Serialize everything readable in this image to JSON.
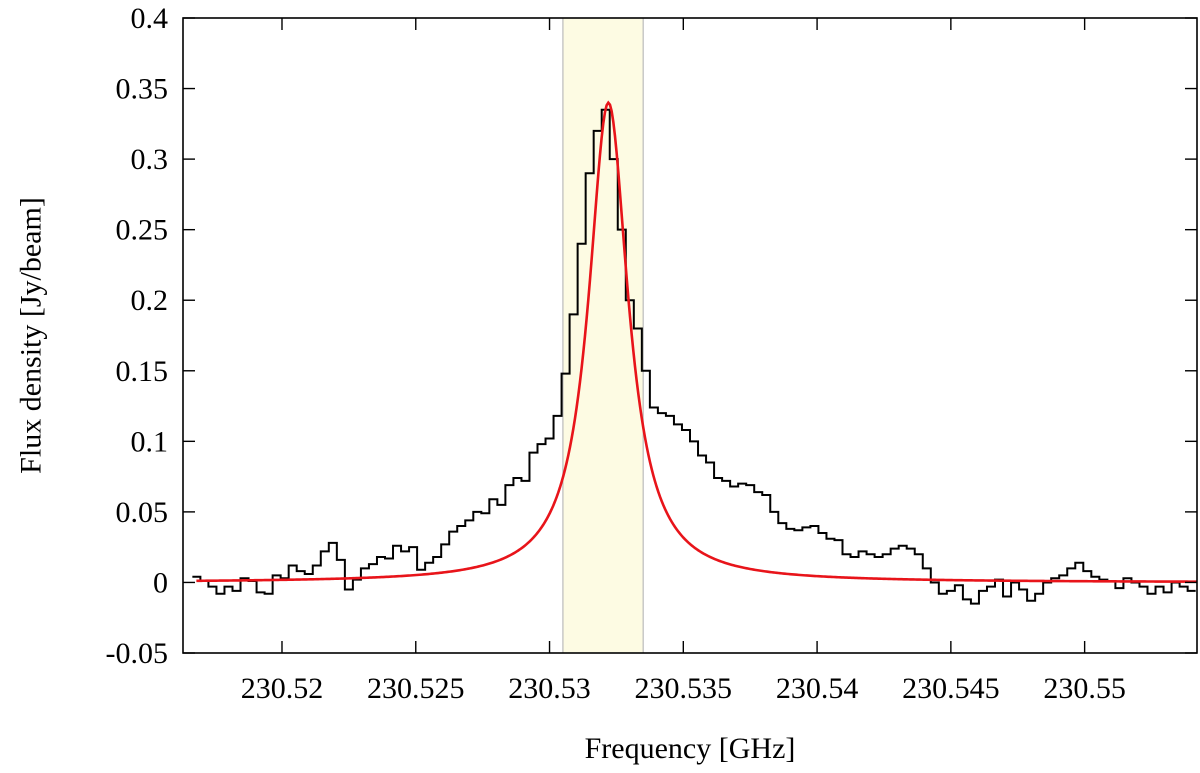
{
  "chart_data": {
    "type": "line",
    "title": "",
    "xlabel": "Frequency [GHz]",
    "ylabel": "Flux density [Jy/beam]",
    "xlim": [
      230.5163,
      230.5542
    ],
    "ylim": [
      -0.05,
      0.4
    ],
    "x_ticks": [
      230.52,
      230.525,
      230.53,
      230.535,
      230.54,
      230.545,
      230.55
    ],
    "x_tick_labels": [
      "230.52",
      "230.525",
      "230.53",
      "230.535",
      "230.54",
      "230.545",
      "230.55"
    ],
    "y_ticks": [
      -0.05,
      0,
      0.05,
      0.1,
      0.15,
      0.2,
      0.25,
      0.3,
      0.35,
      0.4
    ],
    "y_tick_labels": [
      "-0.05",
      "0",
      "0.05",
      "0.1",
      "0.15",
      "0.2",
      "0.25",
      "0.3",
      "0.35",
      "0.4"
    ],
    "grid": false,
    "legend": false,
    "highlight_band": {
      "x_range": [
        230.5305,
        230.5335
      ],
      "fill_color": "#fdfbe3",
      "edge_color": "#bbbbbb"
    },
    "series": [
      {
        "style": "steps",
        "color": "#000000",
        "x": [
          230.5168,
          230.5171,
          230.5174,
          230.5177,
          230.518,
          230.5183,
          230.5186,
          230.5189,
          230.5192,
          230.5195,
          230.5198,
          230.5201,
          230.5204,
          230.5207,
          230.521,
          230.5213,
          230.5216,
          230.5219,
          230.5222,
          230.5225,
          230.5228,
          230.5231,
          230.5234,
          230.5237,
          230.524,
          230.5243,
          230.5246,
          230.5249,
          230.5252,
          230.5255,
          230.5258,
          230.5261,
          230.5264,
          230.5267,
          230.527,
          230.5273,
          230.5276,
          230.5279,
          230.5282,
          230.5285,
          230.5288,
          230.5291,
          230.5294,
          230.5297,
          230.53,
          230.5303,
          230.5306,
          230.5309,
          230.5312,
          230.5315,
          230.5318,
          230.5321,
          230.5324,
          230.5327,
          230.533,
          230.5333,
          230.5336,
          230.5339,
          230.5342,
          230.5345,
          230.5348,
          230.5351,
          230.5354,
          230.5357,
          230.536,
          230.5363,
          230.5366,
          230.5369,
          230.5372,
          230.5375,
          230.5378,
          230.5381,
          230.5384,
          230.5387,
          230.539,
          230.5393,
          230.5396,
          230.5399,
          230.5402,
          230.5405,
          230.5408,
          230.5411,
          230.5414,
          230.5417,
          230.542,
          230.5423,
          230.5426,
          230.5429,
          230.5432,
          230.5435,
          230.5438,
          230.5441,
          230.5444,
          230.5447,
          230.545,
          230.5453,
          230.5456,
          230.5459,
          230.5462,
          230.5465,
          230.5468,
          230.5471,
          230.5474,
          230.5477,
          230.548,
          230.5483,
          230.5486,
          230.5489,
          230.5492,
          230.5495,
          230.5498,
          230.5501,
          230.5504,
          230.5507,
          230.551,
          230.5513,
          230.5516,
          230.5519,
          230.5522,
          230.5525,
          230.5528,
          230.5531,
          230.5534,
          230.5537,
          230.554
        ],
        "y": [
          0.004,
          0.001,
          -0.003,
          -0.008,
          -0.003,
          -0.006,
          0.003,
          0.001,
          -0.007,
          -0.008,
          0.005,
          0.003,
          0.012,
          0.008,
          0.006,
          0.012,
          0.022,
          0.028,
          0.016,
          -0.005,
          0.002,
          0.01,
          0.013,
          0.018,
          0.017,
          0.026,
          0.022,
          0.025,
          0.009,
          0.014,
          0.018,
          0.027,
          0.036,
          0.04,
          0.044,
          0.05,
          0.049,
          0.059,
          0.055,
          0.069,
          0.074,
          0.072,
          0.092,
          0.098,
          0.102,
          0.118,
          0.148,
          0.19,
          0.24,
          0.29,
          0.32,
          0.335,
          0.3,
          0.25,
          0.2,
          0.18,
          0.15,
          0.124,
          0.12,
          0.118,
          0.112,
          0.108,
          0.1,
          0.09,
          0.085,
          0.074,
          0.072,
          0.068,
          0.07,
          0.069,
          0.064,
          0.062,
          0.05,
          0.042,
          0.038,
          0.037,
          0.039,
          0.04,
          0.035,
          0.031,
          0.03,
          0.02,
          0.018,
          0.022,
          0.02,
          0.018,
          0.02,
          0.024,
          0.026,
          0.024,
          0.02,
          0.01,
          0.0,
          -0.008,
          -0.006,
          -0.002,
          -0.012,
          -0.015,
          -0.006,
          -0.003,
          0.002,
          -0.01,
          0.0,
          -0.005,
          -0.013,
          -0.008,
          0.0,
          0.003,
          0.005,
          0.01,
          0.014,
          0.008,
          0.004,
          0.002,
          0.001,
          -0.004,
          0.003,
          0.0,
          -0.003,
          -0.008,
          -0.003,
          -0.007,
          0.0,
          -0.003,
          -0.006
        ]
      },
      {
        "style": "line",
        "color": "#e8141a",
        "model": "lorentzian",
        "center": 230.5322,
        "amplitude": 0.34,
        "hwhm": 0.0009,
        "x_range": [
          230.5168,
          230.5542
        ]
      }
    ]
  }
}
